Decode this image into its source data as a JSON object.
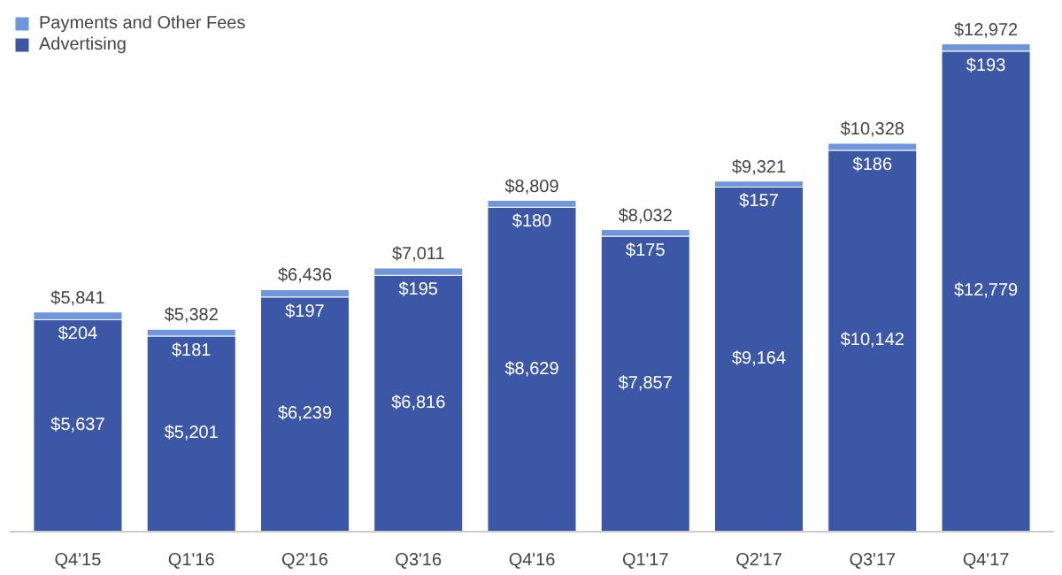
{
  "chart_data": {
    "type": "bar",
    "stacked": true,
    "legend": "top left",
    "grid": false,
    "data_labels": false,
    "categories": [
      "Q4'15",
      "Q1'16",
      "Q2'16",
      "Q3'16",
      "Q4'16",
      "Q1'17",
      "Q2'17",
      "Q3'17",
      "Q4'17"
    ],
    "series": [
      {
        "name": "Advertising",
        "color": "#3b57a6",
        "values": [
          5637,
          5201,
          6239,
          6816,
          8629,
          7857,
          9164,
          10142,
          12779
        ],
        "value_labels": [
          "$5,637",
          "$5,201",
          "$6,239",
          "$6,816",
          "$8,629",
          "$7,857",
          "$9,164",
          "$10,142",
          "$12,779"
        ]
      },
      {
        "name": "Payments and Other Fees",
        "color": "#6f95dc",
        "values": [
          204,
          181,
          197,
          195,
          180,
          175,
          157,
          186,
          193
        ],
        "value_labels": [
          "$204",
          "$181",
          "$197",
          "$195",
          "$180",
          "$175",
          "$157",
          "$186",
          "$193"
        ]
      }
    ],
    "totals": [
      "$5,841",
      "$5,382",
      "$6,436",
      "$7,011",
      "$8,809",
      "$8,032",
      "$9,321",
      "$10,328",
      "$12,972"
    ]
  }
}
